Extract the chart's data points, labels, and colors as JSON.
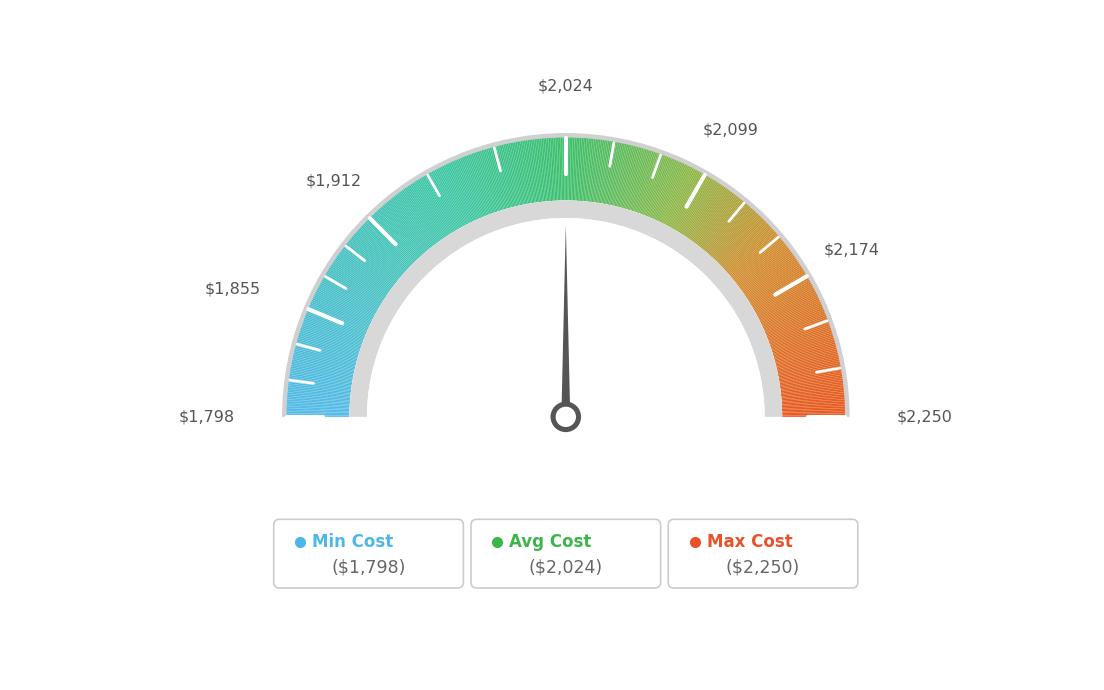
{
  "min_val": 1798,
  "avg_val": 2024,
  "max_val": 2250,
  "tick_labels": [
    "$1,798",
    "$1,855",
    "$1,912",
    "$2,024",
    "$2,099",
    "$2,174",
    "$2,250"
  ],
  "tick_values": [
    1798,
    1855,
    1912,
    2024,
    2099,
    2174,
    2250
  ],
  "legend": [
    {
      "label": "Min Cost",
      "value": "($1,798)",
      "color": "#4db8e8"
    },
    {
      "label": "Avg Cost",
      "value": "($2,024)",
      "color": "#3cb54a"
    },
    {
      "label": "Max Cost",
      "value": "($2,250)",
      "color": "#e8522a"
    }
  ],
  "bg_color": "#ffffff",
  "color_stops": [
    [
      0.0,
      [
        0.33,
        0.73,
        0.91
      ]
    ],
    [
      0.35,
      [
        0.24,
        0.78,
        0.64
      ]
    ],
    [
      0.5,
      [
        0.24,
        0.75,
        0.43
      ]
    ],
    [
      0.65,
      [
        0.55,
        0.72,
        0.28
      ]
    ],
    [
      0.78,
      [
        0.82,
        0.55,
        0.18
      ]
    ],
    [
      1.0,
      [
        0.91,
        0.35,
        0.13
      ]
    ]
  ]
}
